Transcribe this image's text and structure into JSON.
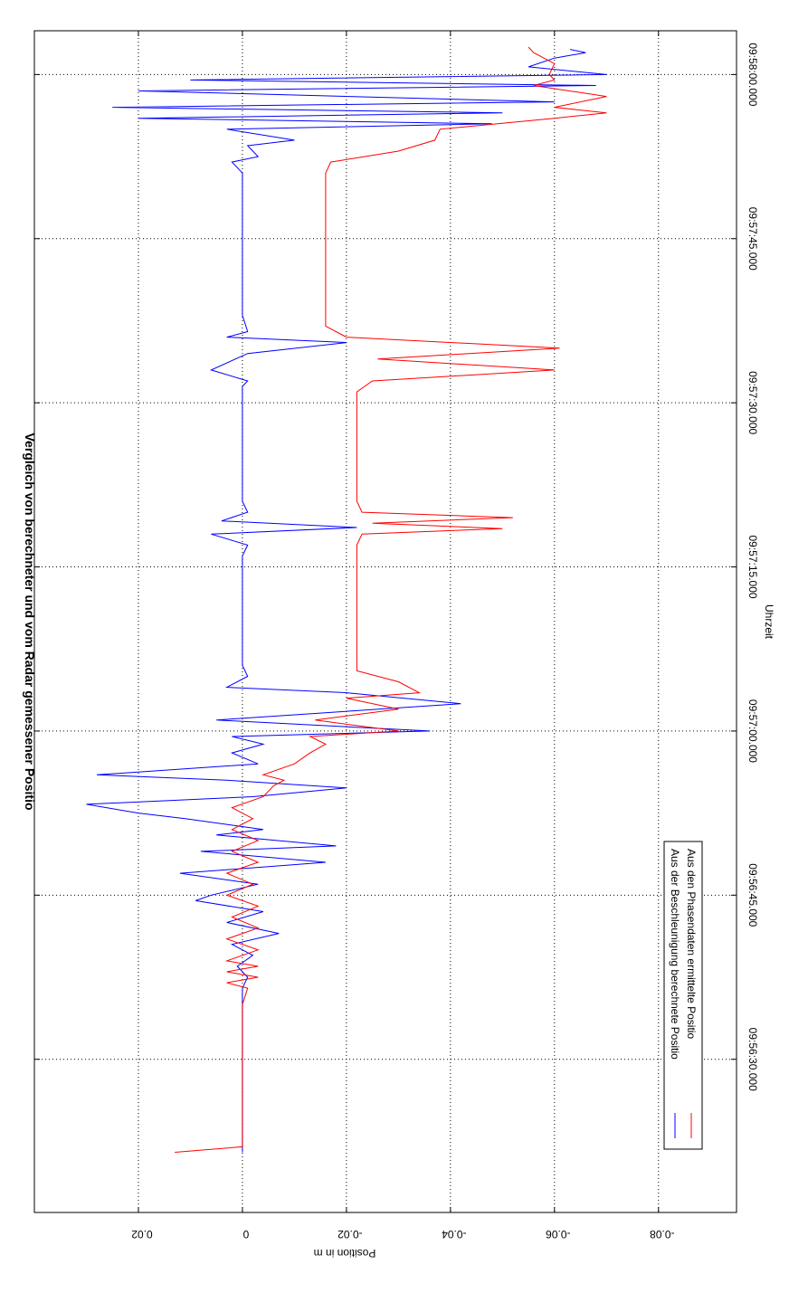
{
  "chart_data": {
    "type": "line",
    "title": "Vergleich von berechneter und vom Radar gemessener Positio",
    "xlabel": "Uhrzeit",
    "ylabel": "Position in m",
    "xlim": [
      "09:56:16.0",
      "09:58:04.0"
    ],
    "ylim": [
      -0.095,
      0.04
    ],
    "grid": true,
    "legend_position": "bottom-left",
    "x_ticks": [
      "09:56:30.000",
      "09:56:45.000",
      "09:57:00.000",
      "09:57:15.000",
      "09:57:30.000",
      "09:57:45.000",
      "09:58:00.000"
    ],
    "y_ticks": [
      0.02,
      0,
      -0.02,
      -0.04,
      -0.06,
      -0.08
    ],
    "y_tick_labels": [
      "0.02",
      "0",
      "-0.02",
      "-0.04",
      "-0.06",
      "-0.08"
    ],
    "series": [
      {
        "name": "Aus der Beschleunigung berechnete Positio",
        "color": "#0000ff",
        "points": [
          [
            "09:56:21.5",
            0.0
          ],
          [
            "09:56:25.0",
            0.0
          ],
          [
            "09:56:30.0",
            0.0
          ],
          [
            "09:56:35.0",
            0.0
          ],
          [
            "09:56:36.5",
            0.0
          ],
          [
            "09:56:37.5",
            -0.001
          ],
          [
            "09:56:38.5",
            0.001
          ],
          [
            "09:56:39.5",
            -0.002
          ],
          [
            "09:56:40.5",
            0.002
          ],
          [
            "09:56:41.5",
            -0.007
          ],
          [
            "09:56:42.5",
            0.003
          ],
          [
            "09:56:43.5",
            -0.004
          ],
          [
            "09:56:44.5",
            0.009
          ],
          [
            "09:56:45.0",
            0.006
          ],
          [
            "09:56:46.0",
            -0.003
          ],
          [
            "09:56:47.0",
            0.012
          ],
          [
            "09:56:48.0",
            -0.016
          ],
          [
            "09:56:49.0",
            0.008
          ],
          [
            "09:56:49.5",
            -0.018
          ],
          [
            "09:56:50.5",
            0.005
          ],
          [
            "09:56:51.0",
            -0.004
          ],
          [
            "09:56:52.0",
            0.011
          ],
          [
            "09:56:52.5",
            0.02
          ],
          [
            "09:56:53.3",
            0.03
          ],
          [
            "09:56:54.0",
            -0.002
          ],
          [
            "09:56:54.8",
            -0.02
          ],
          [
            "09:56:55.5",
            0.003
          ],
          [
            "09:56:56.0",
            0.028
          ],
          [
            "09:56:57.0",
            -0.003
          ],
          [
            "09:56:58.0",
            0.002
          ],
          [
            "09:56:58.8",
            -0.004
          ],
          [
            "09:56:59.5",
            0.002
          ],
          [
            "09:57:00.0",
            -0.036
          ],
          [
            "09:57:01.0",
            0.005
          ],
          [
            "09:57:02.5",
            -0.042
          ],
          [
            "09:57:03.5",
            -0.02
          ],
          [
            "09:57:04.0",
            0.003
          ],
          [
            "09:57:05.0",
            -0.001
          ],
          [
            "09:57:06.0",
            0.0
          ],
          [
            "09:57:10.0",
            0.0
          ],
          [
            "09:57:15.0",
            0.0
          ],
          [
            "09:57:16.0",
            0.0
          ],
          [
            "09:57:17.0",
            -0.001
          ],
          [
            "09:57:18.0",
            0.006
          ],
          [
            "09:57:18.6",
            -0.022
          ],
          [
            "09:57:19.2",
            0.004
          ],
          [
            "09:57:20.0",
            -0.001
          ],
          [
            "09:57:21.0",
            0.0
          ],
          [
            "09:57:25.0",
            0.0
          ],
          [
            "09:57:30.0",
            0.0
          ],
          [
            "09:57:31.5",
            0.0
          ],
          [
            "09:57:32.0",
            -0.001
          ],
          [
            "09:57:33.0",
            0.006
          ],
          [
            "09:57:34.5",
            -0.001
          ],
          [
            "09:57:35.5",
            -0.02
          ],
          [
            "09:57:36.0",
            0.003
          ],
          [
            "09:57:36.5",
            -0.001
          ],
          [
            "09:57:38.0",
            0.0
          ],
          [
            "09:57:45.0",
            0.0
          ],
          [
            "09:57:51.0",
            0.0
          ],
          [
            "09:57:52.0",
            0.002
          ],
          [
            "09:57:52.5",
            -0.003
          ],
          [
            "09:57:53.5",
            -0.001
          ],
          [
            "09:57:54.0",
            -0.01
          ],
          [
            "09:57:55.0",
            0.003
          ],
          [
            "09:57:55.5",
            -0.048
          ],
          [
            "09:57:56.0",
            0.02
          ],
          [
            "09:57:56.5",
            -0.05
          ],
          [
            "09:57:57.0",
            0.025
          ],
          [
            "09:57:57.5",
            -0.06
          ],
          [
            "09:57:58.5",
            0.02
          ],
          [
            "09:57:59.0",
            -0.068
          ],
          [
            "09:57:59.5",
            0.01
          ],
          [
            "09:58:00.0",
            -0.07
          ],
          [
            "09:58:00.7",
            -0.055
          ],
          [
            "09:58:01.5",
            -0.06
          ],
          [
            "09:58:02.0",
            -0.066
          ],
          [
            "09:58:02.3",
            -0.063
          ]
        ]
      },
      {
        "name": "Aus den Phasendaten ermittelte Positio",
        "color": "#ff0000",
        "points": [
          [
            "09:56:21.5",
            0.013
          ],
          [
            "09:56:22.0",
            0.0
          ],
          [
            "09:56:25.0",
            0.0
          ],
          [
            "09:56:30.0",
            0.0
          ],
          [
            "09:56:35.0",
            0.0
          ],
          [
            "09:56:36.5",
            -0.001
          ],
          [
            "09:56:37.0",
            0.003
          ],
          [
            "09:56:37.5",
            -0.003
          ],
          [
            "09:56:38.0",
            0.003
          ],
          [
            "09:56:38.5",
            -0.003
          ],
          [
            "09:56:39.0",
            0.003
          ],
          [
            "09:56:40.0",
            -0.003
          ],
          [
            "09:56:41.0",
            0.003
          ],
          [
            "09:56:42.0",
            -0.003
          ],
          [
            "09:56:43.0",
            0.002
          ],
          [
            "09:56:44.0",
            -0.003
          ],
          [
            "09:56:45.0",
            0.003
          ],
          [
            "09:56:46.0",
            -0.002
          ],
          [
            "09:56:47.0",
            0.003
          ],
          [
            "09:56:48.0",
            -0.003
          ],
          [
            "09:56:49.0",
            0.002
          ],
          [
            "09:56:50.0",
            -0.003
          ],
          [
            "09:56:51.0",
            0.002
          ],
          [
            "09:56:52.0",
            -0.002
          ],
          [
            "09:56:53.0",
            0.002
          ],
          [
            "09:56:54.0",
            -0.004
          ],
          [
            "09:56:55.0",
            -0.006
          ],
          [
            "09:56:55.5",
            -0.008
          ],
          [
            "09:56:56.0",
            -0.004
          ],
          [
            "09:56:57.0",
            -0.01
          ],
          [
            "09:56:58.0",
            -0.013
          ],
          [
            "09:56:58.8",
            -0.016
          ],
          [
            "09:56:59.5",
            -0.013
          ],
          [
            "09:57:00.0",
            -0.03
          ],
          [
            "09:57:01.0",
            -0.014
          ],
          [
            "09:57:02.0",
            -0.03
          ],
          [
            "09:57:03.0",
            -0.02
          ],
          [
            "09:57:03.5",
            -0.034
          ],
          [
            "09:57:04.5",
            -0.03
          ],
          [
            "09:57:05.5",
            -0.022
          ],
          [
            "09:57:06.0",
            -0.022
          ],
          [
            "09:57:10.0",
            -0.022
          ],
          [
            "09:57:15.0",
            -0.022
          ],
          [
            "09:57:17.0",
            -0.022
          ],
          [
            "09:57:18.0",
            -0.023
          ],
          [
            "09:57:18.5",
            -0.05
          ],
          [
            "09:57:19.0",
            -0.025
          ],
          [
            "09:57:19.5",
            -0.052
          ],
          [
            "09:57:20.0",
            -0.023
          ],
          [
            "09:57:21.0",
            -0.022
          ],
          [
            "09:57:25.0",
            -0.022
          ],
          [
            "09:57:30.0",
            -0.022
          ],
          [
            "09:57:31.0",
            -0.022
          ],
          [
            "09:57:32.0",
            -0.025
          ],
          [
            "09:57:33.0",
            -0.06
          ],
          [
            "09:57:34.0",
            -0.026
          ],
          [
            "09:57:35.0",
            -0.061
          ],
          [
            "09:57:36.0",
            -0.02
          ],
          [
            "09:57:37.0",
            -0.016
          ],
          [
            "09:57:38.0",
            -0.016
          ],
          [
            "09:57:45.0",
            -0.016
          ],
          [
            "09:57:51.0",
            -0.016
          ],
          [
            "09:57:52.0",
            -0.017
          ],
          [
            "09:57:53.0",
            -0.03
          ],
          [
            "09:57:54.0",
            -0.037
          ],
          [
            "09:57:55.0",
            -0.038
          ],
          [
            "09:57:56.0",
            -0.06
          ],
          [
            "09:57:56.5",
            -0.07
          ],
          [
            "09:57:57.0",
            -0.06
          ],
          [
            "09:57:58.0",
            -0.07
          ],
          [
            "09:57:59.0",
            -0.056
          ],
          [
            "09:57:59.5",
            -0.06
          ],
          [
            "09:58:00.0",
            -0.059
          ],
          [
            "09:58:01.0",
            -0.06
          ],
          [
            "09:58:02.0",
            -0.056
          ],
          [
            "09:58:02.5",
            -0.055
          ]
        ]
      }
    ]
  }
}
